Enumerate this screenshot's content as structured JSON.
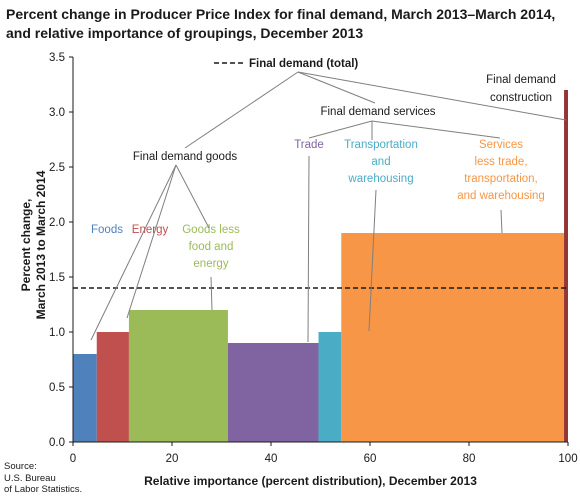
{
  "chart_data": {
    "type": "bar",
    "title": "Percent change in Producer Price Index for final demand, March 2013–March 2014, and relative importance of groupings, December 2013",
    "xlabel": "Relative importance (percent distribution), December 2013",
    "ylabel": [
      "Percent  change,",
      "March  2013  to March  2014"
    ],
    "xlim": [
      0,
      100
    ],
    "ylim": [
      0.0,
      3.5
    ],
    "xticks": [
      0,
      20,
      40,
      60,
      80,
      100
    ],
    "yticks": [
      0.0,
      0.5,
      1.0,
      1.5,
      2.0,
      2.5,
      3.0,
      3.5
    ],
    "grid": false,
    "reference_line": {
      "label": "Final demand (total)",
      "value": 1.4,
      "style": "dashed"
    },
    "series": [
      {
        "name": "Foods",
        "x_start": 0.0,
        "x_end": 4.8,
        "value": 0.8,
        "color": "#4f81bd"
      },
      {
        "name": "Energy",
        "x_start": 4.8,
        "x_end": 11.3,
        "value": 1.0,
        "color": "#c0504d"
      },
      {
        "name": "Goods less food and energy",
        "x_start": 11.3,
        "x_end": 31.3,
        "value": 1.2,
        "color": "#9bbb59"
      },
      {
        "name": "Trade",
        "x_start": 31.3,
        "x_end": 49.6,
        "value": 0.9,
        "color": "#8064a2"
      },
      {
        "name": "Transportation and warehousing",
        "x_start": 49.6,
        "x_end": 54.2,
        "value": 1.0,
        "color": "#4bacc6"
      },
      {
        "name": "Services less trade, transportation, and warehousing",
        "x_start": 54.2,
        "x_end": 99.2,
        "value": 1.9,
        "color": "#f79646"
      },
      {
        "name": "Final demand construction",
        "x_start": 99.2,
        "x_end": 100.0,
        "value": 3.2,
        "color": "#943634"
      }
    ],
    "annotations": {
      "goods": "Final demand goods",
      "services": "Final demand services",
      "construction": [
        "Final demand",
        "construction"
      ],
      "foods": "Foods",
      "energy": "Energy",
      "goods_less": [
        "Goods less",
        "food and",
        "energy"
      ],
      "trade": "Trade",
      "transport": [
        "Transportation",
        "and",
        "warehousing"
      ],
      "services_less": [
        "Services",
        "less trade,",
        "transportation,",
        "and warehousing"
      ]
    }
  },
  "source": [
    "Source:",
    "U.S. Bureau",
    "of Labor Statistics."
  ]
}
